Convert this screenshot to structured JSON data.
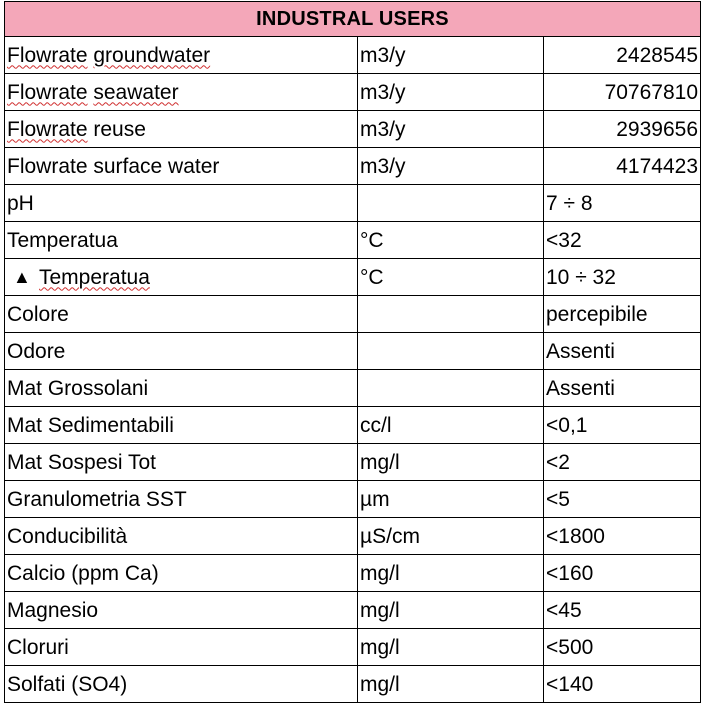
{
  "table": {
    "title": "INDUSTRAL USERS",
    "header_color": "#f4a7b9",
    "rows": [
      {
        "param_main": "Flowrate",
        "param_sq": "groundwater",
        "unit": "m3/y",
        "value": "2428545"
      },
      {
        "param_main": "Flowrate",
        "param_sq": "seawater",
        "unit": "m3/y",
        "value": "70767810"
      },
      {
        "param_main": "Flowrate",
        "param_sq": "reuse",
        "unit": "m3/y",
        "value": "2939656"
      },
      {
        "param": "Flowrate surface water",
        "unit": "m3/y",
        "value": "4174423"
      },
      {
        "param": "pH",
        "unit": "",
        "value": "7 ÷ 8"
      },
      {
        "param": "Temperatua",
        "unit": "°C",
        "value": "<32"
      },
      {
        "delta_symbol": "▲",
        "param_sq": "Temperatua",
        "unit": "°C",
        "value": "10 ÷ 32"
      },
      {
        "param": "Colore",
        "unit": "",
        "value": "percepibile"
      },
      {
        "param": "Odore",
        "unit": "",
        "value": "Assenti"
      },
      {
        "param": "Mat Grossolani",
        "unit": "",
        "value": "Assenti"
      },
      {
        "param": "Mat Sedimentabili",
        "unit": "cc/l",
        "value": "<0,1"
      },
      {
        "param": "Mat Sospesi Tot",
        "unit": "mg/l",
        "value": "<2"
      },
      {
        "param": "Granulometria SST",
        "unit": "µm",
        "value": "<5"
      },
      {
        "param": "Conducibilità",
        "unit": "µS/cm",
        "value": "<1800"
      },
      {
        "param": "Calcio (ppm Ca)",
        "unit": "mg/l",
        "value": "<160"
      },
      {
        "param": "Magnesio",
        "unit": "mg/l",
        "value": "<45"
      },
      {
        "param": "Cloruri",
        "unit": "mg/l",
        "value": "<500"
      },
      {
        "param": "Solfati (SO4)",
        "unit": "mg/l",
        "value": "<140"
      }
    ]
  }
}
